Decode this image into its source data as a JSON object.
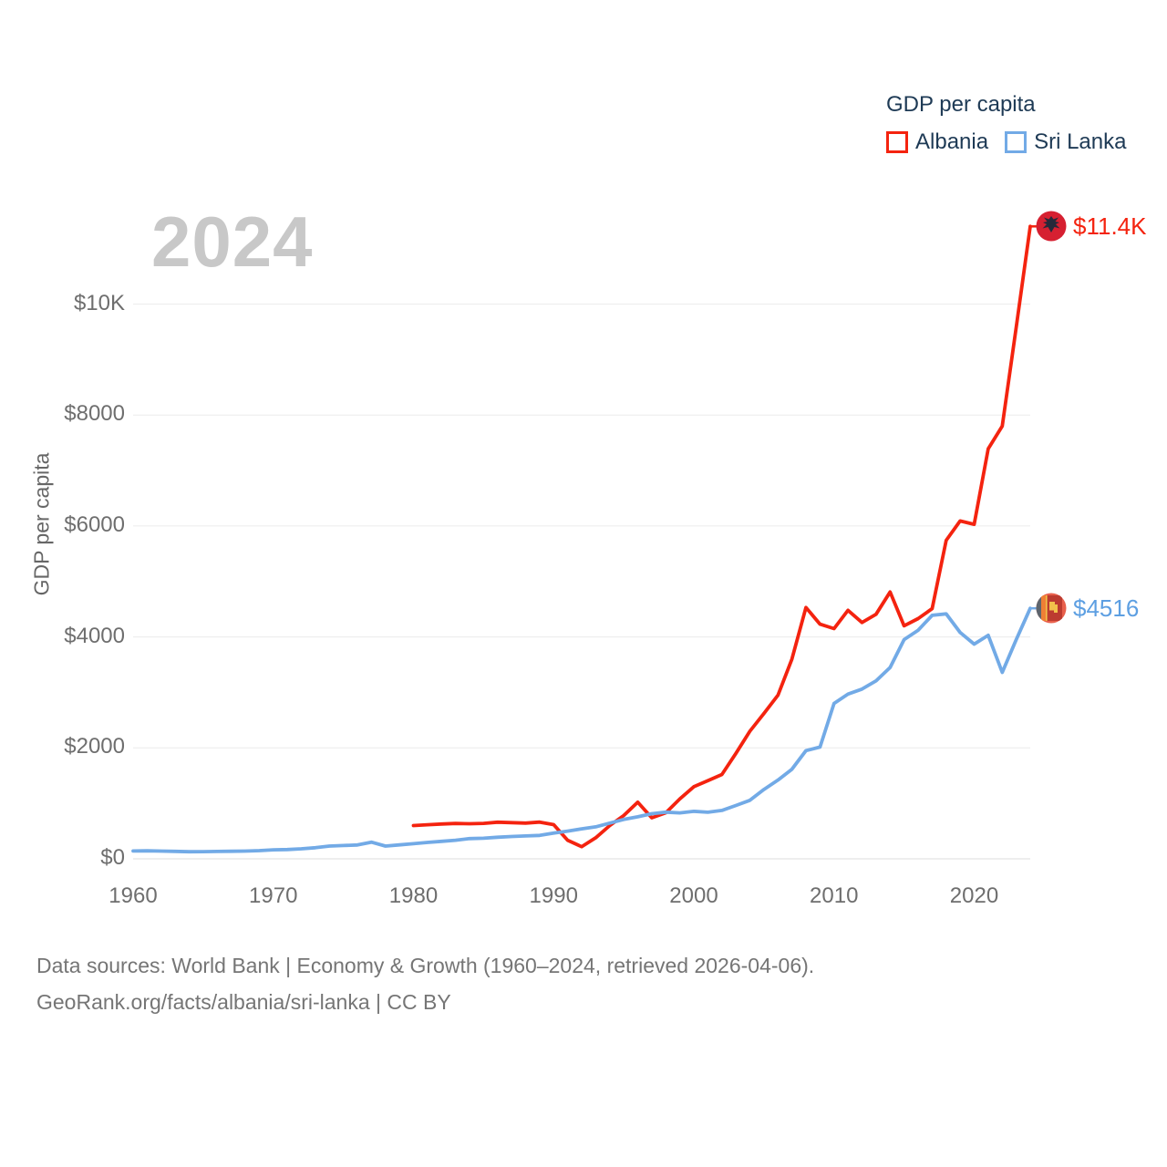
{
  "watermark": {
    "year": "2024"
  },
  "legend": {
    "title": "GDP per capita",
    "items": [
      {
        "label": "Albania",
        "color": "#f4230f"
      },
      {
        "label": "Sri Lanka",
        "color": "#72aae6"
      }
    ]
  },
  "end_labels": [
    {
      "series": "Albania",
      "text": "$11.4K",
      "color": "#f4230f"
    },
    {
      "series": "Sri Lanka",
      "text": "$4516",
      "color": "#5d9fe2"
    }
  ],
  "footer": {
    "line1": "Data sources: World Bank | Economy & Growth (1960–2024, retrieved 2026-04-06).",
    "line2": "GeoRank.org/facts/albania/sri-lanka | CC BY"
  },
  "chart_data": {
    "type": "line",
    "title": "GDP per capita",
    "ylabel": "GDP per capita",
    "xlabel": "",
    "grid": "horizontal",
    "legend_position": "top-right",
    "xlim": [
      1960,
      2024
    ],
    "ylim": [
      0,
      11400
    ],
    "x": [
      1960,
      1961,
      1962,
      1963,
      1964,
      1965,
      1966,
      1967,
      1968,
      1969,
      1970,
      1971,
      1972,
      1973,
      1974,
      1975,
      1976,
      1977,
      1978,
      1979,
      1980,
      1981,
      1982,
      1983,
      1984,
      1985,
      1986,
      1987,
      1988,
      1989,
      1990,
      1991,
      1992,
      1993,
      1994,
      1995,
      1996,
      1997,
      1998,
      1999,
      2000,
      2001,
      2002,
      2003,
      2004,
      2005,
      2006,
      2007,
      2008,
      2009,
      2010,
      2011,
      2012,
      2013,
      2014,
      2015,
      2016,
      2017,
      2018,
      2019,
      2020,
      2021,
      2022,
      2023,
      2024
    ],
    "y_ticks": [
      {
        "value": 0,
        "label": "$0"
      },
      {
        "value": 2000,
        "label": "$2000"
      },
      {
        "value": 4000,
        "label": "$4000"
      },
      {
        "value": 6000,
        "label": "$6000"
      },
      {
        "value": 8000,
        "label": "$8000"
      },
      {
        "value": 10000,
        "label": "$10K"
      }
    ],
    "x_ticks": [
      {
        "value": 1960,
        "label": "1960"
      },
      {
        "value": 1970,
        "label": "1970"
      },
      {
        "value": 1980,
        "label": "1980"
      },
      {
        "value": 1990,
        "label": "1990"
      },
      {
        "value": 2000,
        "label": "2000"
      },
      {
        "value": 2010,
        "label": "2010"
      },
      {
        "value": 2020,
        "label": "2020"
      }
    ],
    "series": [
      {
        "name": "Albania",
        "color": "#f4230f",
        "end_label": "$11.4K",
        "values": [
          null,
          null,
          null,
          null,
          null,
          null,
          null,
          null,
          null,
          null,
          null,
          null,
          null,
          null,
          null,
          null,
          null,
          null,
          null,
          null,
          600,
          615,
          628,
          637,
          632,
          640,
          660,
          652,
          645,
          662,
          617,
          336,
          218,
          380,
          600,
          780,
          1020,
          740,
          830,
          1080,
          1300,
          1410,
          1520,
          1900,
          2300,
          2620,
          2950,
          3600,
          4530,
          4230,
          4150,
          4480,
          4260,
          4410,
          4810,
          4200,
          4330,
          4510,
          5740,
          6090,
          6030,
          7390,
          7800,
          9580,
          11400
        ]
      },
      {
        "name": "Sri Lanka",
        "color": "#72aae6",
        "end_label": "$4516",
        "values": [
          142,
          144,
          140,
          134,
          128,
          130,
          133,
          136,
          140,
          148,
          162,
          168,
          180,
          200,
          230,
          240,
          250,
          300,
          230,
          252,
          272,
          295,
          315,
          335,
          365,
          372,
          390,
          402,
          412,
          422,
          464,
          500,
          540,
          577,
          645,
          710,
          758,
          814,
          842,
          828,
          856,
          840,
          872,
          962,
          1055,
          1250,
          1420,
          1615,
          1950,
          2015,
          2800,
          2970,
          3060,
          3210,
          3450,
          3950,
          4120,
          4390,
          4415,
          4080,
          3870,
          4030,
          3360,
          3950,
          4516
        ]
      }
    ]
  }
}
